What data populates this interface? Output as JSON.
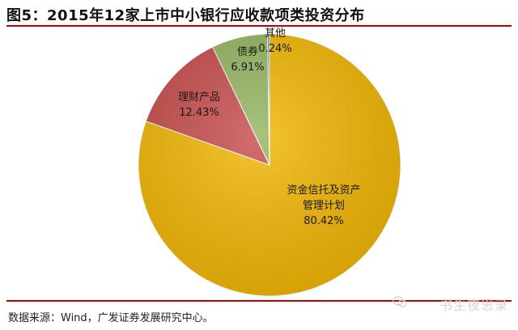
{
  "header": {
    "title": "图5：2015年12家上市中小银行应收款项类投资分布"
  },
  "footer": {
    "source": "数据来源：Wind，广发证券发展研究中心。",
    "watermark": "书生夜思录"
  },
  "chart_data": {
    "type": "pie",
    "title": "图5：2015年12家上市中小银行应收款项类投资分布",
    "slices": [
      {
        "label": [
          "资金信托及资产",
          "管理计划"
        ],
        "value": 80.42,
        "value_label": "80.42%",
        "color": "#f2b705"
      },
      {
        "label": [
          "理财产品"
        ],
        "value": 12.43,
        "value_label": "12.43%",
        "color": "#c84e4e"
      },
      {
        "label": [
          "债券"
        ],
        "value": 6.91,
        "value_label": "6.91%",
        "color": "#96b661"
      },
      {
        "label": [
          "其他"
        ],
        "value": 0.24,
        "value_label": "0.24%",
        "color": "#5a7fb8"
      }
    ]
  }
}
